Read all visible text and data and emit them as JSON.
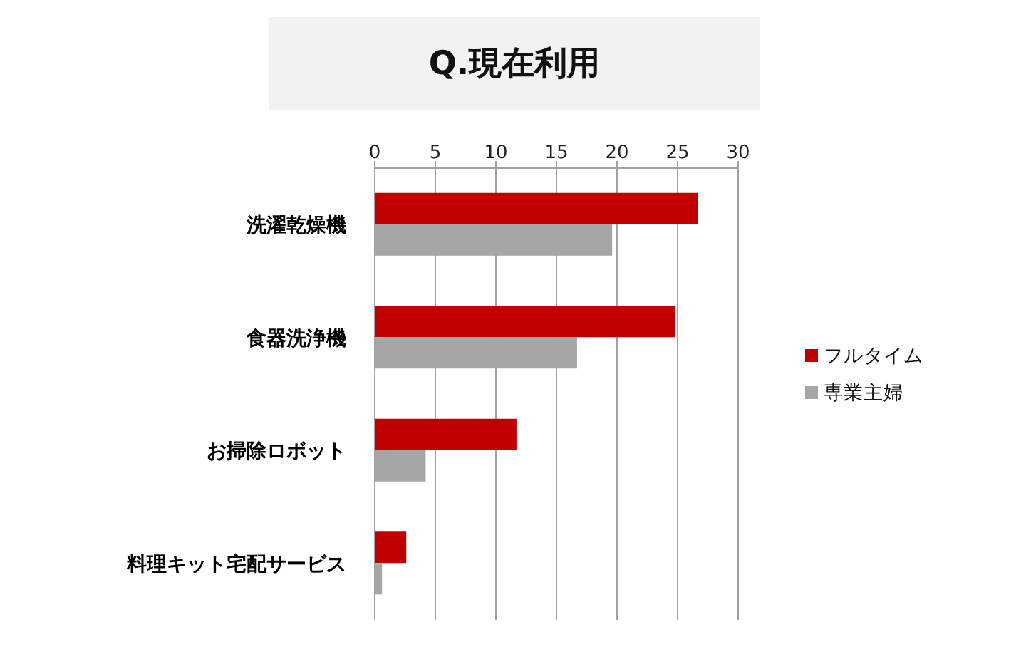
{
  "chart_data": {
    "type": "bar",
    "orientation": "horizontal",
    "title": "Q.現在利用",
    "categories": [
      "洗濯乾燥機",
      "食器洗浄機",
      "お掃除ロボット",
      "料理キット宅配サービス"
    ],
    "series": [
      {
        "name": "フルタイム",
        "color": "#c00000",
        "values": [
          26.7,
          24.8,
          11.7,
          2.6
        ]
      },
      {
        "name": "専業主婦",
        "color": "#a6a6a6",
        "values": [
          19.6,
          16.7,
          4.2,
          0.6
        ]
      }
    ],
    "xlim": [
      0,
      30
    ],
    "xticks": [
      0,
      5,
      10,
      15,
      20,
      25,
      30
    ],
    "grid": "x",
    "legend": "right"
  }
}
